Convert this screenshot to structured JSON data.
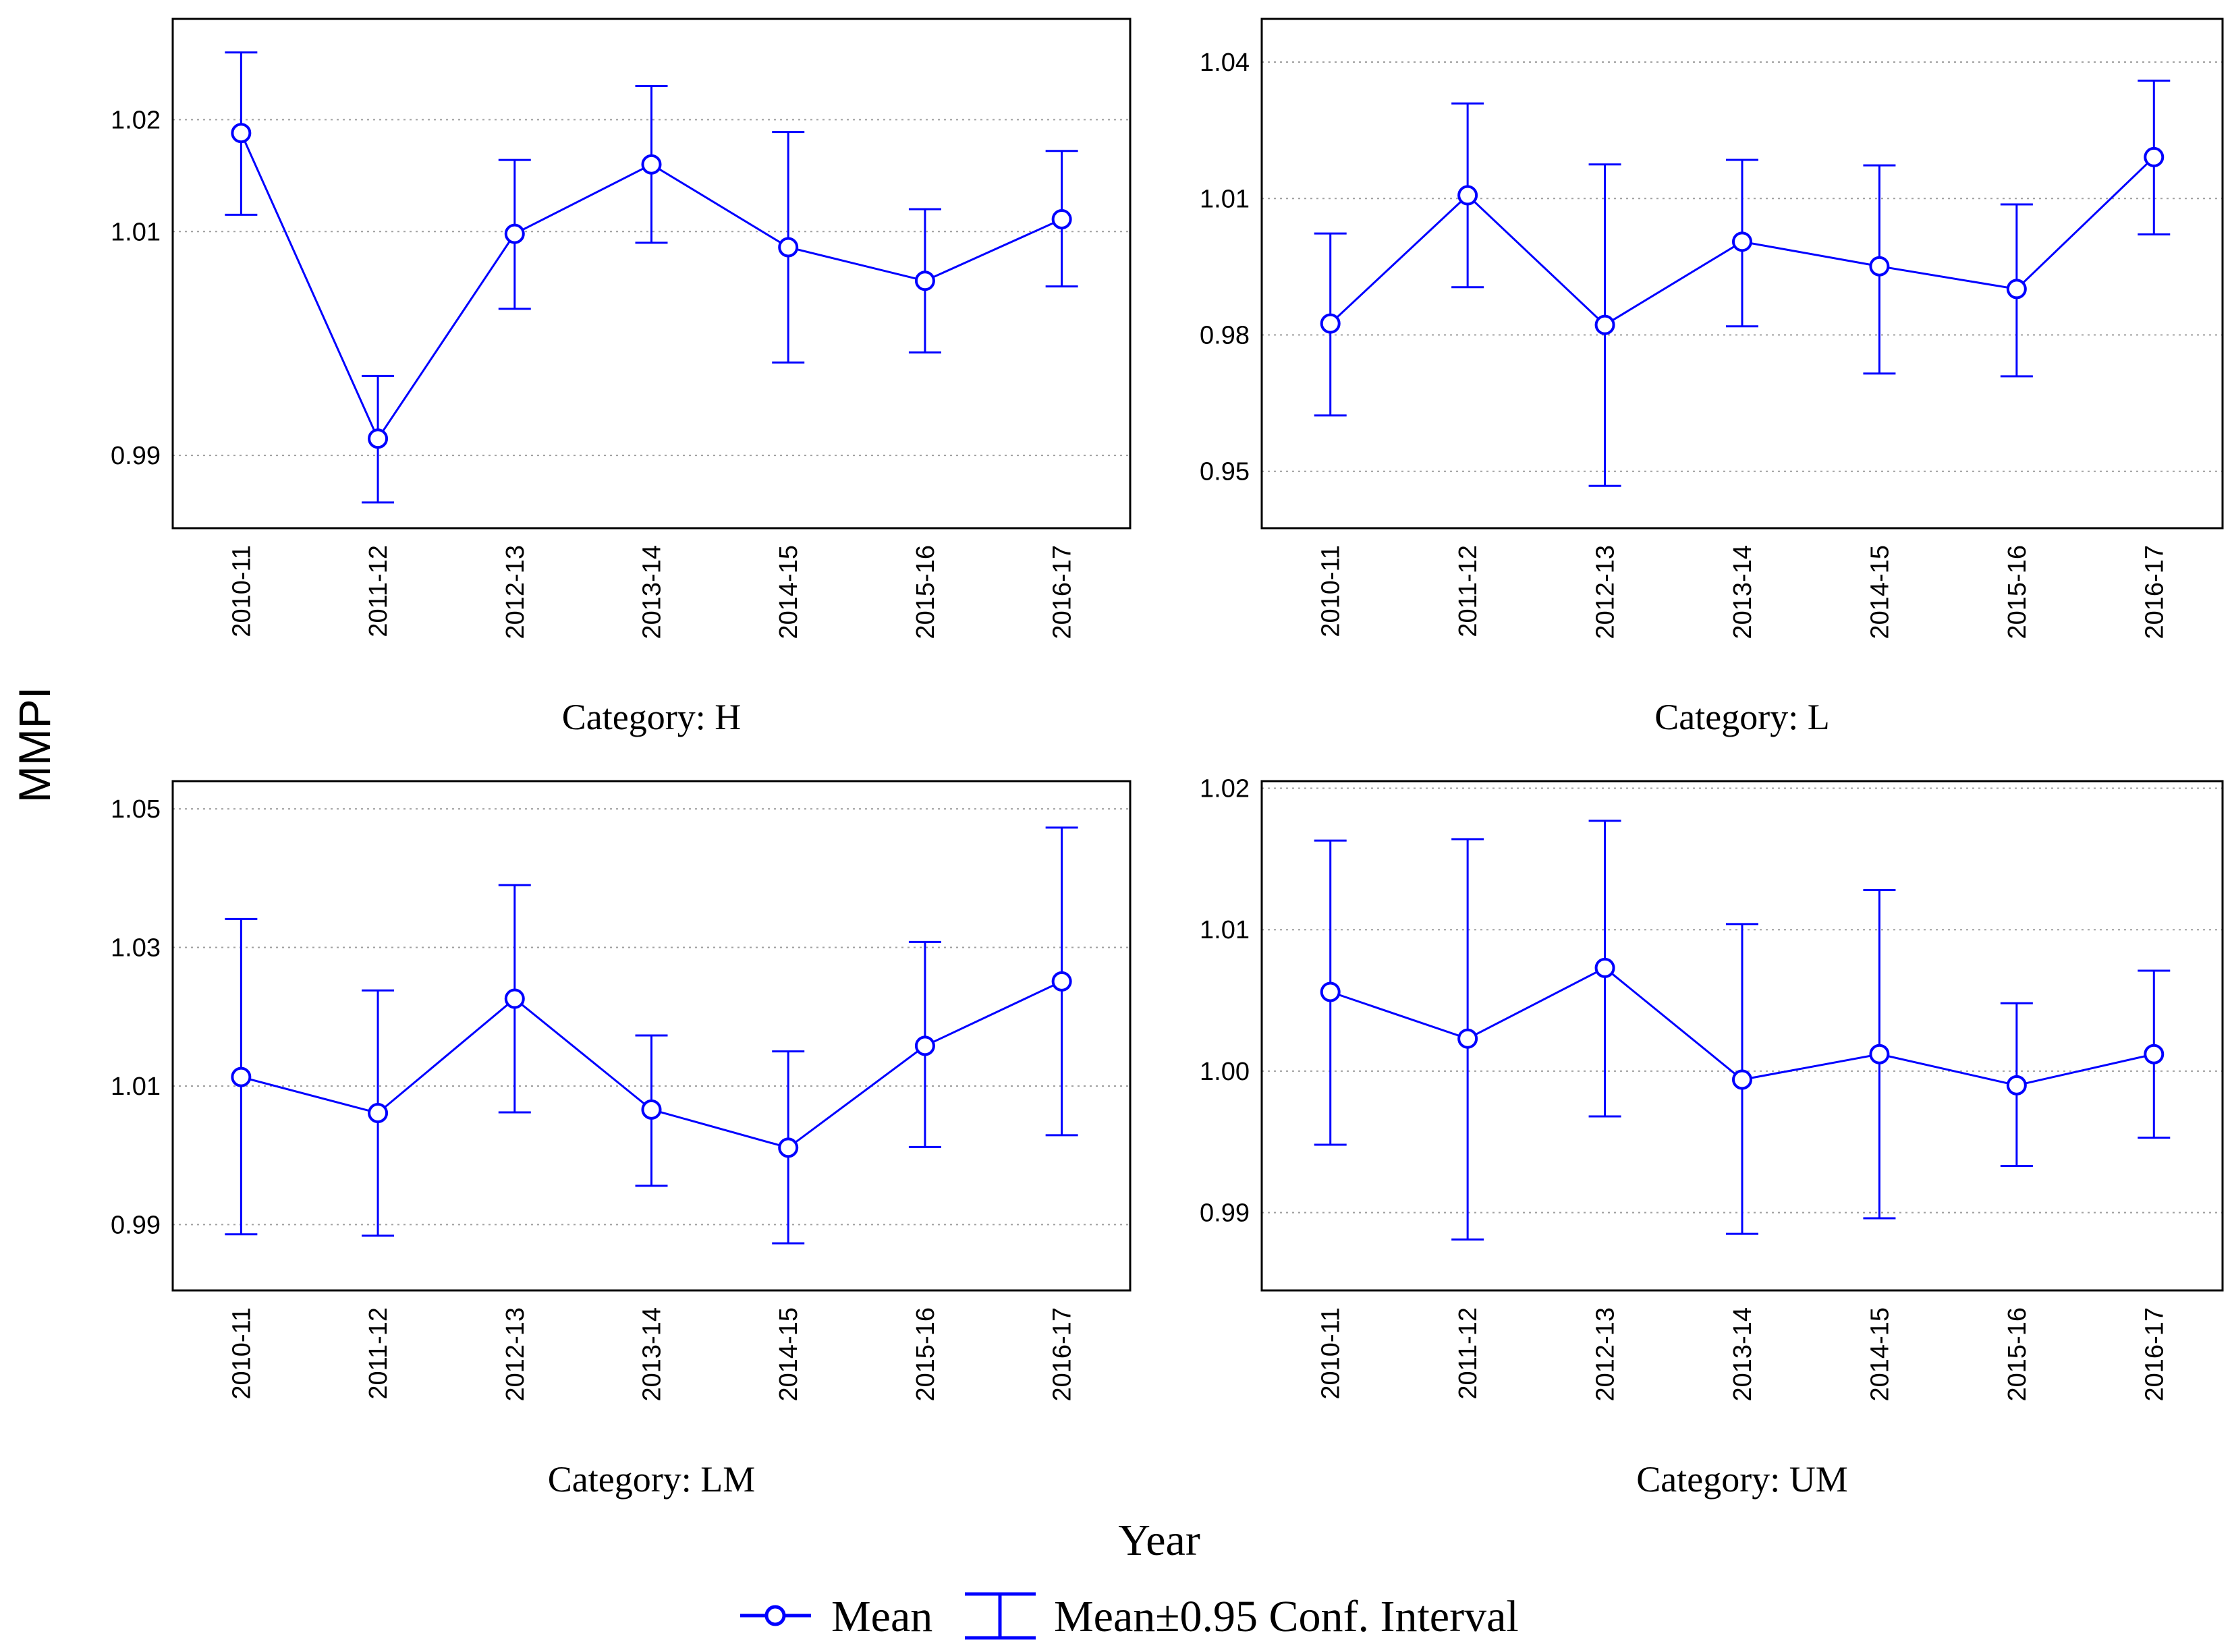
{
  "y_axis_title": "MMPI",
  "x_axis_title": "Year",
  "legend": {
    "mean_label": "Mean",
    "ci_label": "Mean±0.95 Conf. Interval"
  },
  "colors": {
    "series": "#0000ff",
    "grid": "#a0a0a0",
    "frame": "#000000"
  },
  "chart_data": [
    {
      "type": "line",
      "title": "Category:  H",
      "categories": [
        "2010-11",
        "2011-12",
        "2012-13",
        "2013-14",
        "2014-15",
        "2015-16",
        "2016-17"
      ],
      "series": [
        {
          "name": "Mean",
          "values": [
            1.0188,
            0.9915,
            1.0098,
            1.016,
            1.0086,
            1.0056,
            1.0111
          ]
        },
        {
          "name": "Lower",
          "values": [
            1.0115,
            0.9858,
            1.0031,
            1.009,
            0.9983,
            0.9992,
            1.0051
          ]
        },
        {
          "name": "Upper",
          "values": [
            1.026,
            0.9971,
            1.0164,
            1.023,
            1.0189,
            1.012,
            1.0172
          ]
        }
      ],
      "yticks": [
        0.99,
        1.01,
        1.02
      ],
      "ytick_labels": [
        "0.99",
        "1.01",
        "1.02"
      ],
      "ylim": [
        0.9835,
        1.029
      ]
    },
    {
      "type": "line",
      "title": "Category: L",
      "categories": [
        "2010-11",
        "2011-12",
        "2012-13",
        "2013-14",
        "2014-15",
        "2015-16",
        "2016-17"
      ],
      "series": [
        {
          "name": "Mean",
          "values": [
            0.9825,
            1.0107,
            0.9822,
            1.0005,
            0.9951,
            0.9901,
            1.0191
          ]
        },
        {
          "name": "Lower",
          "values": [
            0.9623,
            0.9905,
            0.9468,
            0.9819,
            0.9715,
            0.9709,
            1.0021
          ]
        },
        {
          "name": "Upper",
          "values": [
            1.0023,
            1.0309,
            1.0175,
            1.0185,
            1.0173,
            1.0087,
            1.0359
          ]
        }
      ],
      "yticks": [
        0.95,
        0.98,
        1.01,
        1.04
      ],
      "ytick_labels": [
        "0.95",
        "0.98",
        "1.01",
        "1.04"
      ],
      "ylim": [
        0.9375,
        1.0495
      ]
    },
    {
      "type": "line",
      "title": "Category: LM",
      "categories": [
        "2010-11",
        "2011-12",
        "2012-13",
        "2013-14",
        "2014-15",
        "2015-16",
        "2016-17"
      ],
      "series": [
        {
          "name": "Mean",
          "values": [
            1.0113,
            1.0061,
            1.0226,
            1.0066,
            1.0011,
            1.0158,
            1.0251
          ]
        },
        {
          "name": "Lower",
          "values": [
            0.9886,
            0.9884,
            1.0062,
            0.9956,
            0.9873,
            1.0012,
            1.0029
          ]
        },
        {
          "name": "Upper",
          "values": [
            1.0341,
            1.0238,
            1.039,
            1.0173,
            1.015,
            1.0308,
            1.0473
          ]
        }
      ],
      "yticks": [
        0.99,
        1.01,
        1.03,
        1.05
      ],
      "ytick_labels": [
        "0.99",
        "1.01",
        "1.03",
        "1.05"
      ],
      "ylim": [
        0.9805,
        1.054
      ]
    },
    {
      "type": "line",
      "title": "Category: UM",
      "categories": [
        "2010-11",
        "2011-12",
        "2012-13",
        "2013-14",
        "2014-15",
        "2015-16",
        "2016-17"
      ],
      "series": [
        {
          "name": "Mean",
          "values": [
            1.0056,
            1.0023,
            1.0073,
            0.9994,
            1.0012,
            0.999,
            1.0012
          ]
        },
        {
          "name": "Lower",
          "values": [
            0.9948,
            0.9881,
            0.9968,
            0.9885,
            0.9896,
            0.9933,
            0.9953
          ]
        },
        {
          "name": "Upper",
          "values": [
            1.0163,
            1.0164,
            1.0177,
            1.0104,
            1.0128,
            1.0048,
            1.0071
          ]
        }
      ],
      "yticks": [
        0.99,
        1.0,
        1.01,
        1.02
      ],
      "ytick_labels": [
        "0.99",
        "1.00",
        "1.01",
        "1.02"
      ],
      "ylim": [
        0.9845,
        1.0205
      ]
    }
  ]
}
